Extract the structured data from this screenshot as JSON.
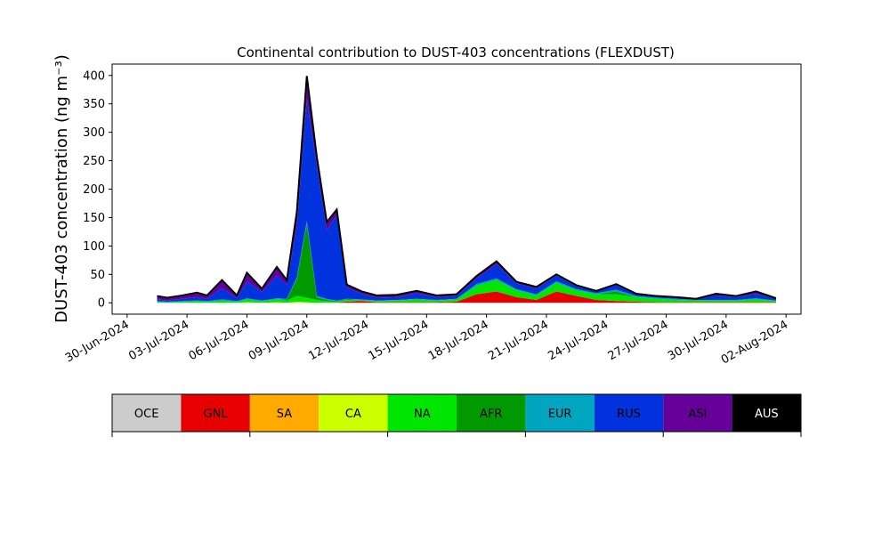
{
  "chart_data": {
    "type": "area",
    "stacked": true,
    "title": "Continental contribution to DUST-403 concentrations (FLEXDUST)",
    "ylabel": "DUST-403 concentration (ng m⁻³)",
    "xlabel": "",
    "xlim": [
      "2024-06-29T06:00",
      "2024-08-02T18:00"
    ],
    "ylim": [
      -20,
      420
    ],
    "x_ticks": [
      "30-Jun-2024",
      "03-Jul-2024",
      "06-Jul-2024",
      "09-Jul-2024",
      "12-Jul-2024",
      "15-Jul-2024",
      "18-Jul-2024",
      "21-Jul-2024",
      "24-Jul-2024",
      "27-Jul-2024",
      "30-Jul-2024",
      "02-Aug-2024"
    ],
    "y_ticks": [
      0,
      50,
      100,
      150,
      200,
      250,
      300,
      350,
      400
    ],
    "grid": false,
    "legend_placement": "bottom colorbar",
    "x": [
      "2024-07-01T12:00",
      "2024-07-02T00:00",
      "2024-07-02T18:00",
      "2024-07-03T12:00",
      "2024-07-04T00:00",
      "2024-07-04T18:00",
      "2024-07-05T12:00",
      "2024-07-06T00:00",
      "2024-07-06T18:00",
      "2024-07-07T12:00",
      "2024-07-08T00:00",
      "2024-07-08T12:00",
      "2024-07-09T00:00",
      "2024-07-09T12:00",
      "2024-07-10T00:00",
      "2024-07-10T12:00",
      "2024-07-11T00:00",
      "2024-07-11T18:00",
      "2024-07-12T12:00",
      "2024-07-13T12:00",
      "2024-07-14T12:00",
      "2024-07-15T12:00",
      "2024-07-16T12:00",
      "2024-07-17T12:00",
      "2024-07-18T12:00",
      "2024-07-19T12:00",
      "2024-07-20T12:00",
      "2024-07-21T12:00",
      "2024-07-22T12:00",
      "2024-07-23T12:00",
      "2024-07-24T12:00",
      "2024-07-25T12:00",
      "2024-07-26T12:00",
      "2024-07-27T12:00",
      "2024-07-28T12:00",
      "2024-07-29T12:00",
      "2024-07-30T12:00",
      "2024-07-31T12:00",
      "2024-08-01T12:00"
    ],
    "series": [
      {
        "name": "OCE",
        "color": "#cccccc",
        "values": [
          0,
          0,
          0,
          0,
          0,
          0,
          0,
          0,
          0,
          0,
          0,
          0,
          0,
          0,
          0,
          0,
          0,
          0,
          0,
          0,
          0,
          0,
          0,
          0,
          0,
          0,
          0,
          0,
          0,
          0,
          0,
          0,
          0,
          0,
          0,
          0,
          0,
          0,
          0
        ]
      },
      {
        "name": "GNL",
        "color": "#e60000",
        "values": [
          0,
          0,
          0,
          0,
          0,
          0,
          0,
          0,
          0,
          0,
          0,
          0,
          0,
          0,
          0,
          0,
          2,
          3,
          1,
          1,
          1,
          1,
          2,
          15,
          20,
          10,
          5,
          20,
          12,
          5,
          3,
          2,
          1,
          1,
          1,
          1,
          1,
          1,
          1
        ]
      },
      {
        "name": "SA",
        "color": "#ffaa00",
        "values": [
          0,
          0,
          0,
          0,
          0,
          0,
          0,
          0,
          0,
          0,
          0,
          0,
          0,
          0,
          0,
          0,
          0,
          0,
          0,
          0,
          0,
          0,
          0,
          0,
          0,
          0,
          0,
          0,
          0,
          0,
          0,
          0,
          0,
          0,
          0,
          0,
          0,
          0,
          0
        ]
      },
      {
        "name": "CA",
        "color": "#ccff00",
        "values": [
          0,
          0,
          0,
          0,
          0,
          0,
          0,
          1,
          0,
          1,
          0,
          2,
          1,
          0,
          0,
          0,
          0,
          0,
          0,
          0,
          0,
          0,
          0,
          0,
          0,
          0,
          0,
          0,
          0,
          0,
          0,
          0,
          0,
          0,
          0,
          0,
          0,
          0,
          0
        ]
      },
      {
        "name": "NA",
        "color": "#00e600",
        "values": [
          2,
          1,
          2,
          3,
          2,
          4,
          2,
          5,
          3,
          5,
          4,
          10,
          8,
          5,
          3,
          2,
          3,
          2,
          2,
          3,
          5,
          3,
          4,
          15,
          20,
          12,
          8,
          15,
          10,
          10,
          12,
          8,
          6,
          4,
          3,
          3,
          3,
          5,
          2
        ]
      },
      {
        "name": "AFR",
        "color": "#009a00",
        "values": [
          0,
          0,
          0,
          0,
          0,
          0,
          0,
          0,
          0,
          0,
          2,
          30,
          130,
          5,
          2,
          1,
          1,
          0,
          0,
          0,
          0,
          0,
          0,
          0,
          0,
          0,
          0,
          0,
          0,
          0,
          5,
          0,
          0,
          0,
          0,
          0,
          0,
          0,
          0
        ]
      },
      {
        "name": "EUR",
        "color": "#00a6bf",
        "values": [
          1,
          1,
          1,
          1,
          1,
          2,
          1,
          2,
          1,
          2,
          1,
          3,
          5,
          2,
          2,
          1,
          1,
          1,
          1,
          1,
          1,
          1,
          1,
          3,
          3,
          2,
          2,
          3,
          2,
          2,
          3,
          2,
          2,
          2,
          1,
          1,
          1,
          2,
          1
        ]
      },
      {
        "name": "RUS",
        "color": "#0033dd",
        "values": [
          3,
          2,
          4,
          6,
          4,
          20,
          5,
          30,
          15,
          40,
          25,
          90,
          215,
          230,
          120,
          150,
          20,
          10,
          5,
          5,
          10,
          5,
          5,
          10,
          25,
          10,
          10,
          10,
          5,
          3,
          8,
          3,
          2,
          2,
          1,
          8,
          5,
          8,
          3
        ]
      },
      {
        "name": "ASI",
        "color": "#660099",
        "values": [
          6,
          5,
          6,
          8,
          6,
          14,
          5,
          15,
          6,
          15,
          8,
          25,
          40,
          15,
          15,
          10,
          5,
          4,
          4,
          4,
          4,
          3,
          3,
          4,
          5,
          3,
          3,
          2,
          2,
          1,
          2,
          1,
          1,
          1,
          1,
          3,
          2,
          4,
          1
        ]
      },
      {
        "name": "AUS",
        "color": "#000000",
        "values": [
          0,
          0,
          0,
          0,
          0,
          0,
          0,
          0,
          0,
          0,
          0,
          0,
          0,
          0,
          0,
          0,
          0,
          0,
          0,
          0,
          0,
          0,
          0,
          0,
          0,
          0,
          0,
          0,
          0,
          0,
          0,
          0,
          0,
          0,
          0,
          0,
          0,
          0,
          0
        ]
      }
    ]
  }
}
